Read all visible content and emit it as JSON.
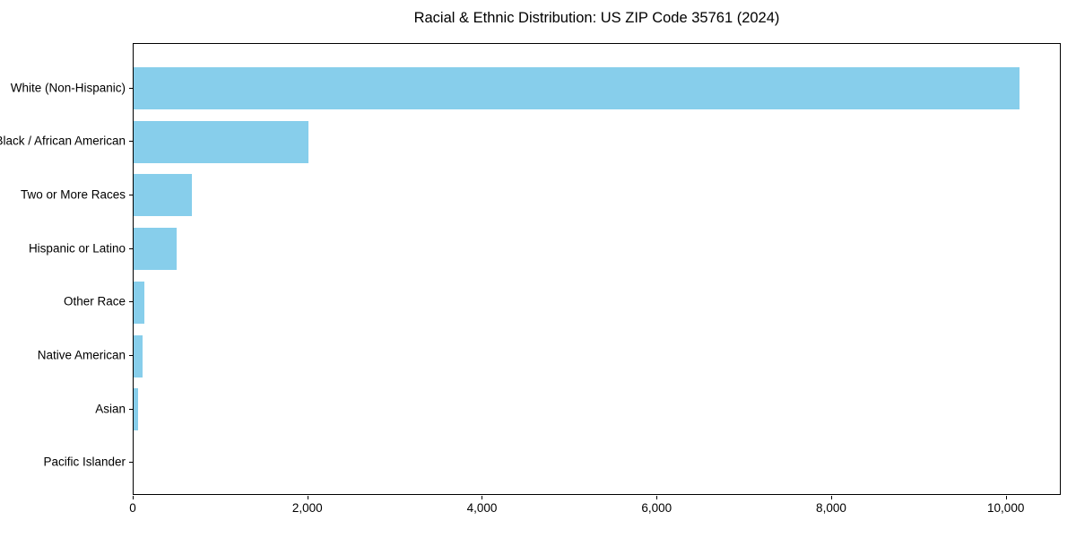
{
  "chart_data": {
    "type": "bar",
    "orientation": "horizontal",
    "title": "Racial & Ethnic Distribution: US ZIP Code 35761 (2024)",
    "categories": [
      "White (Non-Hispanic)",
      "Black / African American",
      "Two or More Races",
      "Hispanic or Latino",
      "Other Race",
      "Native American",
      "Asian",
      "Pacific Islander"
    ],
    "values": [
      10150,
      2000,
      670,
      490,
      120,
      100,
      50,
      0
    ],
    "xlabel": "",
    "ylabel": "",
    "xlim": [
      0,
      10630
    ],
    "xticks": [
      0,
      2000,
      4000,
      6000,
      8000,
      10000
    ],
    "xtick_labels": [
      "0",
      "2,000",
      "4,000",
      "6,000",
      "8,000",
      "10,000"
    ],
    "bar_color": "#87CEEB",
    "grid": false,
    "legend": "none",
    "frame": true,
    "background": "#ffffff"
  }
}
